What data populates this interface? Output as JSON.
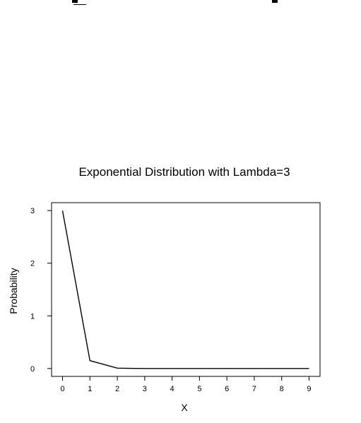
{
  "chart_data": {
    "type": "line",
    "title": "Exponential Distribution with Lambda=3",
    "xlabel": "X",
    "ylabel": "Probability",
    "xlim": [
      -0.4,
      9.4
    ],
    "ylim": [
      -0.15,
      3.15
    ],
    "x_ticks": [
      0,
      1,
      2,
      3,
      4,
      5,
      6,
      7,
      8,
      9
    ],
    "y_ticks": [
      0,
      1,
      2,
      3
    ],
    "grid": false,
    "series": [
      {
        "x": [
          0,
          1,
          2,
          2.6,
          3,
          4,
          5,
          6,
          7,
          8,
          9
        ],
        "values": [
          3.0,
          0.149,
          0.007,
          0.001,
          0.0004,
          0.0,
          0.0,
          0.0,
          0.0,
          0.0,
          0.0
        ]
      }
    ],
    "colors": {
      "line": "#000000",
      "frame": "#000000"
    }
  }
}
